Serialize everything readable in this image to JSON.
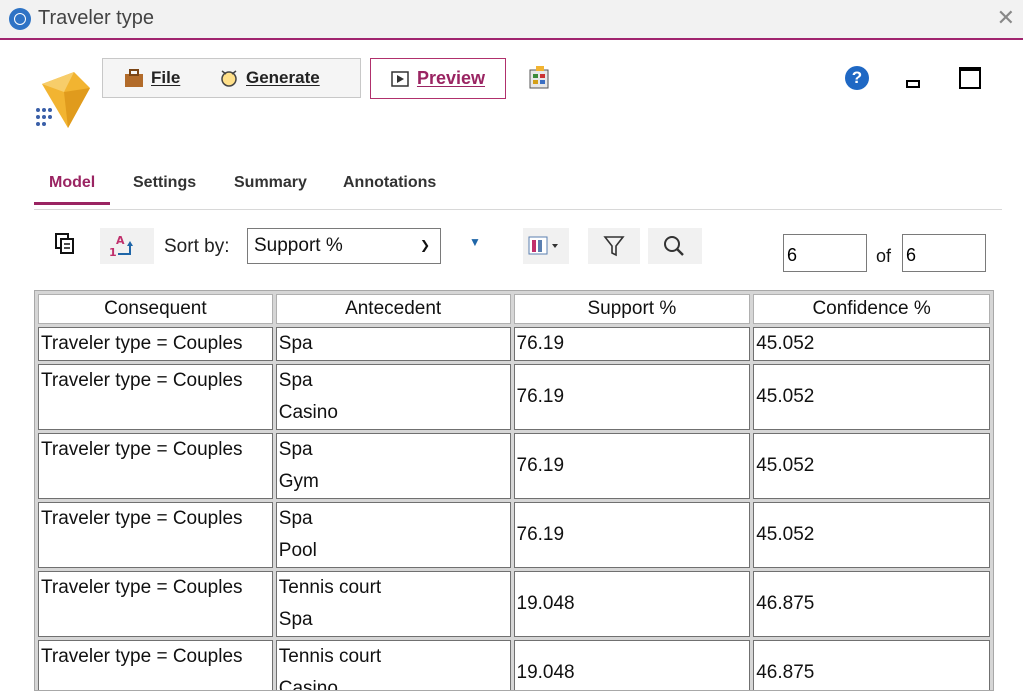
{
  "window": {
    "title": "Traveler type",
    "close_glyph": "✕"
  },
  "toolbar": {
    "file_label": "File",
    "generate_label": "Generate",
    "preview_label": "Preview",
    "help_glyph": "?"
  },
  "tabs": [
    {
      "label": "Model",
      "active": true
    },
    {
      "label": "Settings",
      "active": false
    },
    {
      "label": "Summary",
      "active": false
    },
    {
      "label": "Annotations",
      "active": false
    }
  ],
  "controls": {
    "sort_by_label": "Sort by:",
    "sort_value": "Support %",
    "page_current": "6",
    "of_label": "of",
    "page_total": "6"
  },
  "table": {
    "headers": [
      "Consequent",
      "Antecedent",
      "Support %",
      "Confidence %"
    ],
    "rows": [
      {
        "consequent": "Traveler type = Couples",
        "antecedent": [
          "Spa"
        ],
        "support": "76.19",
        "confidence": "45.052"
      },
      {
        "consequent": "Traveler type = Couples",
        "antecedent": [
          "Spa",
          "Casino"
        ],
        "support": "76.19",
        "confidence": "45.052"
      },
      {
        "consequent": "Traveler type = Couples",
        "antecedent": [
          "Spa",
          "Gym"
        ],
        "support": "76.19",
        "confidence": "45.052"
      },
      {
        "consequent": "Traveler type = Couples",
        "antecedent": [
          "Spa",
          "Pool"
        ],
        "support": "76.19",
        "confidence": "45.052"
      },
      {
        "consequent": "Traveler type = Couples",
        "antecedent": [
          "Tennis court",
          "Spa"
        ],
        "support": "19.048",
        "confidence": "46.875"
      },
      {
        "consequent": "Traveler type = Couples",
        "antecedent": [
          "Tennis court",
          "Casino"
        ],
        "support": "19.048",
        "confidence": "46.875"
      }
    ]
  },
  "colors": {
    "accent": "#9a2462",
    "help_blue": "#1f68c4",
    "logo_gold": "#f2b431"
  }
}
